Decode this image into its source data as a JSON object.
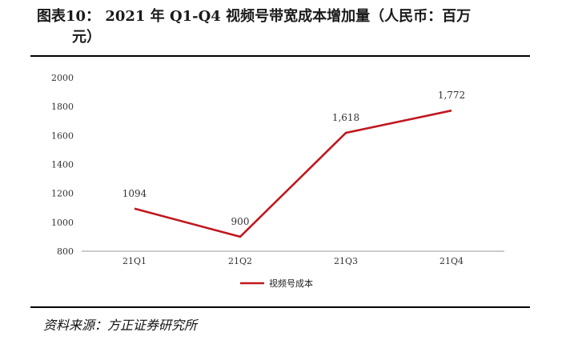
{
  "figure": {
    "title_line1": "图表10：  2021 年 Q1-Q4 视频号带宽成本增加量（人民币：百万",
    "title_line2": "元）",
    "source": "资料来源：方正证券研究所"
  },
  "colors": {
    "series": "#c0181f",
    "axis": "#9a9a9a",
    "rule": "#000000"
  },
  "chart_data": {
    "type": "line",
    "title": "2021 年 Q1-Q4 视频号带宽成本增加量（人民币：百万元）",
    "xlabel": "",
    "ylabel": "",
    "categories": [
      "21Q1",
      "21Q2",
      "21Q3",
      "21Q4"
    ],
    "series": [
      {
        "name": "视频号成本",
        "values": [
          1094,
          900,
          1618,
          1772
        ],
        "labels": [
          "1094",
          "900",
          "1,618",
          "1,772"
        ]
      }
    ],
    "ylim": [
      800,
      2000
    ],
    "yticks": [
      "2000",
      "1800",
      "1600",
      "1400",
      "1200",
      "1000",
      "800"
    ],
    "ytick_values": [
      2000,
      1800,
      1600,
      1400,
      1200,
      1000,
      800
    ],
    "grid": false,
    "legend_position": "bottom"
  }
}
